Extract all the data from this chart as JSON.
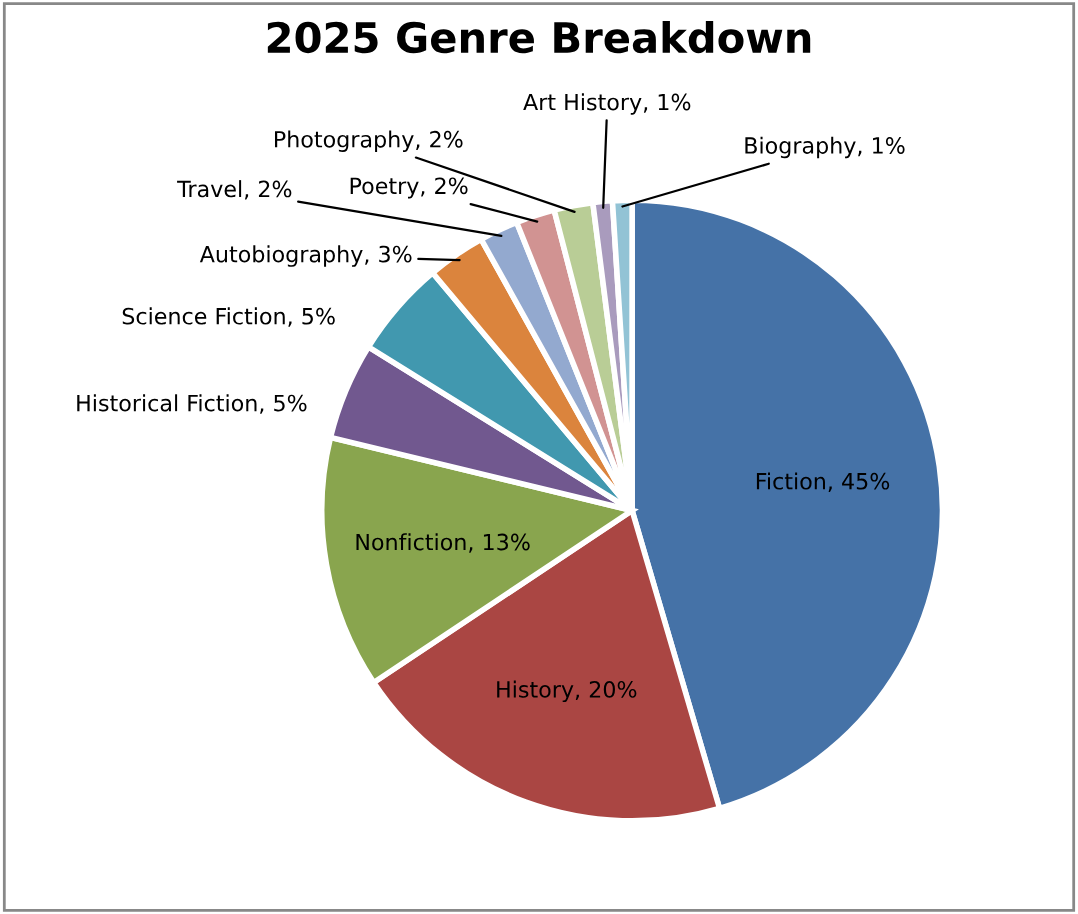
{
  "chart_data": {
    "type": "pie",
    "title": "2025 Genre Breakdown",
    "categories": [
      "Fiction",
      "History",
      "Nonfiction",
      "Historical Fiction",
      "Science Fiction",
      "Autobiography",
      "Travel",
      "Poetry",
      "Photography",
      "Art History",
      "Biography"
    ],
    "values": [
      45,
      20,
      13,
      5,
      5,
      3,
      2,
      2,
      2,
      1,
      1
    ],
    "colors": [
      "#4572a7",
      "#aa4643",
      "#89a54e",
      "#71588f",
      "#4198af",
      "#db843d",
      "#93a9cf",
      "#d19392",
      "#b9cd96",
      "#a99bbd",
      "#92c3d5"
    ],
    "value_labels": [
      "45%",
      "20%",
      "13%",
      "5%",
      "5%",
      "3%",
      "2%",
      "2%",
      "2%",
      "1%",
      "1%"
    ],
    "legend": false
  }
}
